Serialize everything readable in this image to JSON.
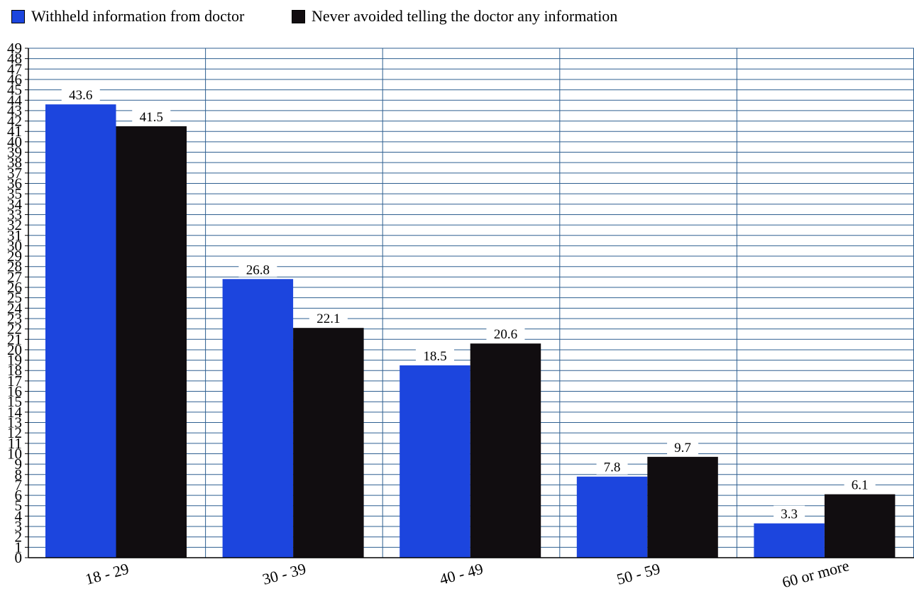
{
  "chart_data": {
    "type": "bar",
    "title": "",
    "xlabel": "",
    "ylabel": "",
    "categories": [
      "18 - 29",
      "30 - 39",
      "40 - 49",
      "50 - 59",
      "60 or more"
    ],
    "series": [
      {
        "name": "Withheld information from doctor",
        "color": "#1c45de",
        "values": [
          43.6,
          26.8,
          18.5,
          7.8,
          3.3
        ]
      },
      {
        "name": "Never avoided telling the doctor any information",
        "color": "#110d10",
        "values": [
          41.5,
          22.1,
          20.6,
          9.7,
          6.1
        ]
      }
    ],
    "ylim": [
      0,
      49
    ],
    "ytick_step": 1,
    "grid": true,
    "grid_color": "#2e5f90",
    "legend_position": "top-left",
    "data_labels": true
  }
}
